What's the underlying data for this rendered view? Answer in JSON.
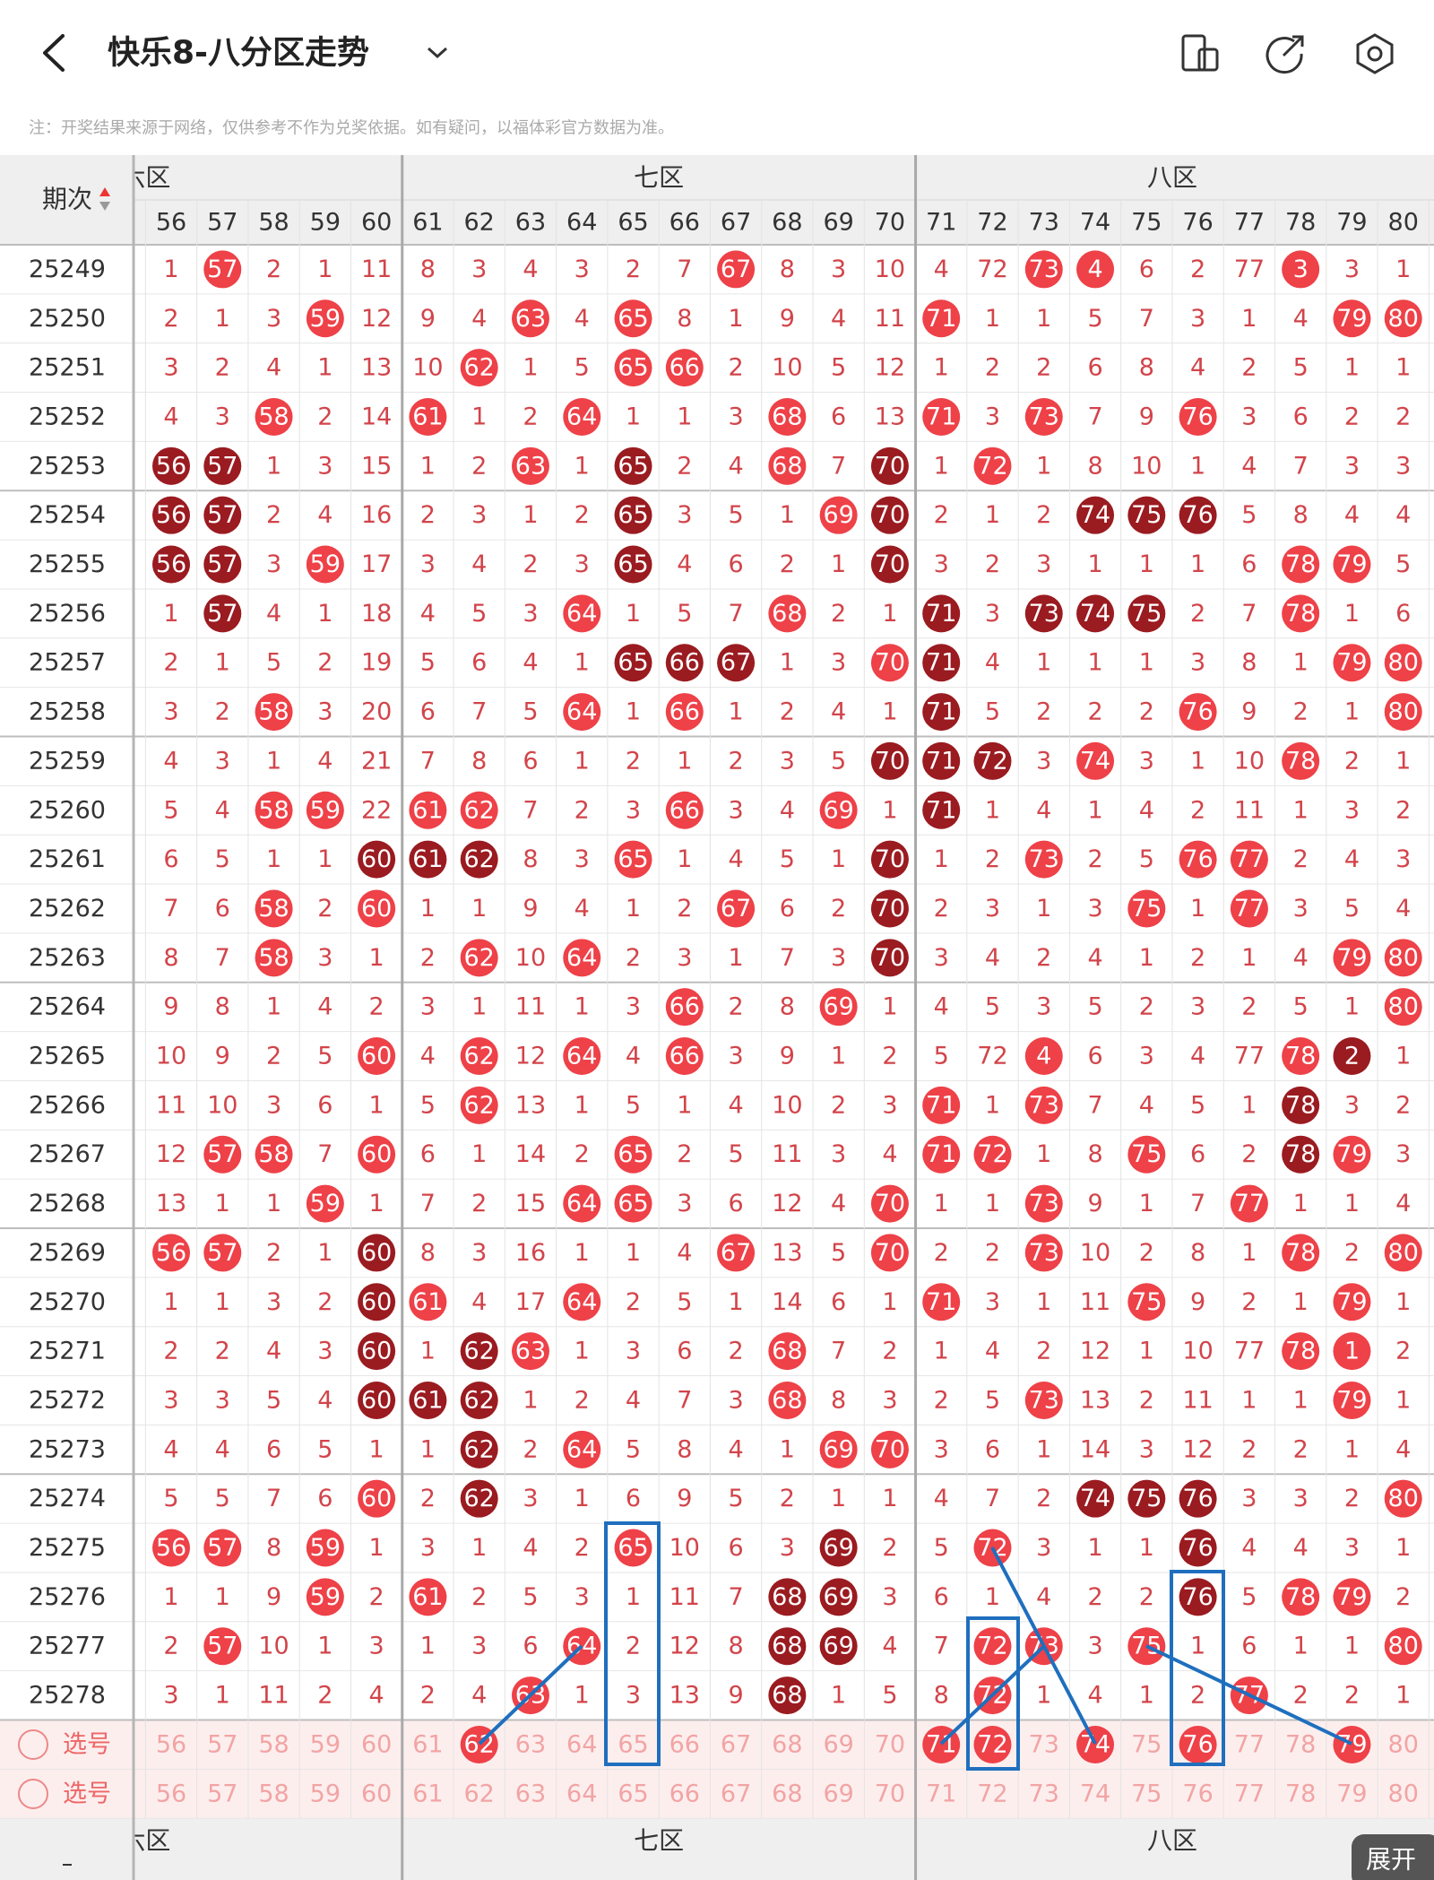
{
  "header": {
    "title": "快乐8-八分区走势"
  },
  "note": "注：开奖结果来源于网络，仅供参考不作为兑奖依据。如有疑问，以福体彩官方数据为准。",
  "table": {
    "period_header": "期次",
    "zones": [
      "六区",
      "七区",
      "八区"
    ],
    "columns": [
      56,
      57,
      58,
      59,
      60,
      61,
      62,
      63,
      64,
      65,
      66,
      67,
      68,
      69,
      70,
      71,
      72,
      73,
      74,
      75,
      76,
      77,
      78,
      79,
      80
    ],
    "rows": [
      {
        "period": "25249",
        "cells": [
          1,
          57,
          2,
          1,
          11,
          8,
          3,
          4,
          3,
          2,
          7,
          67,
          8,
          3,
          10,
          4,
          72,
          73,
          4,
          6,
          2,
          77,
          3,
          3,
          1
        ],
        "style": ".r.........r.....rr...r..."
      },
      {
        "period": "25250",
        "cells": [
          2,
          1,
          3,
          59,
          12,
          9,
          4,
          63,
          4,
          65,
          8,
          1,
          9,
          4,
          11,
          71,
          1,
          1,
          5,
          7,
          3,
          1,
          4,
          79,
          80
        ],
        "style": "...r...r.r.....r.......rr"
      },
      {
        "period": "25251",
        "cells": [
          3,
          2,
          4,
          1,
          13,
          10,
          62,
          1,
          5,
          65,
          66,
          2,
          10,
          5,
          12,
          1,
          2,
          2,
          6,
          8,
          4,
          2,
          5,
          1,
          1
        ],
        "style": "......r..rr..............."
      },
      {
        "period": "25252",
        "cells": [
          4,
          3,
          58,
          2,
          14,
          61,
          1,
          2,
          64,
          1,
          1,
          3,
          68,
          6,
          13,
          71,
          3,
          73,
          7,
          9,
          76,
          3,
          6,
          2,
          2
        ],
        "style": "..r..r..r...r..r.r..r...."
      },
      {
        "period": "25253",
        "cells": [
          56,
          57,
          1,
          3,
          15,
          1,
          2,
          63,
          1,
          65,
          2,
          4,
          68,
          7,
          70,
          1,
          72,
          1,
          8,
          10,
          1,
          4,
          7,
          3,
          3
        ],
        "style": "dd.....r.d..r.d.r........"
      },
      {
        "period": "25254",
        "cells": [
          56,
          57,
          2,
          4,
          16,
          2,
          3,
          1,
          2,
          65,
          3,
          5,
          1,
          69,
          70,
          2,
          1,
          2,
          74,
          75,
          76,
          5,
          8,
          4,
          4
        ],
        "style": "dd.......d...rd...ddd...."
      },
      {
        "period": "25255",
        "cells": [
          56,
          57,
          3,
          59,
          17,
          3,
          4,
          2,
          3,
          65,
          4,
          6,
          2,
          1,
          70,
          3,
          2,
          3,
          1,
          1,
          1,
          6,
          78,
          79,
          5
        ],
        "style": "dd.r.....d....d.......rr."
      },
      {
        "period": "25256",
        "cells": [
          1,
          57,
          4,
          1,
          18,
          4,
          5,
          3,
          64,
          1,
          5,
          7,
          68,
          2,
          1,
          71,
          3,
          73,
          74,
          75,
          2,
          7,
          78,
          1,
          6
        ],
        "style": ".d......r...r..d.ddd..r.."
      },
      {
        "period": "25257",
        "cells": [
          2,
          1,
          5,
          2,
          19,
          5,
          6,
          4,
          1,
          65,
          66,
          67,
          1,
          3,
          70,
          71,
          4,
          1,
          1,
          1,
          3,
          8,
          1,
          79,
          80
        ],
        "style": ".........ddd..rd.......rr"
      },
      {
        "period": "25258",
        "cells": [
          3,
          2,
          58,
          3,
          20,
          6,
          7,
          5,
          64,
          1,
          66,
          1,
          2,
          4,
          1,
          71,
          5,
          2,
          2,
          2,
          76,
          9,
          2,
          1,
          80
        ],
        "style": "..r.....r.r....d....r...r"
      },
      {
        "period": "25259",
        "cells": [
          4,
          3,
          1,
          4,
          21,
          7,
          8,
          6,
          1,
          2,
          1,
          2,
          3,
          5,
          70,
          71,
          72,
          3,
          74,
          3,
          1,
          10,
          78,
          2,
          1
        ],
        "style": "..............ddd.r...r.."
      },
      {
        "period": "25260",
        "cells": [
          5,
          4,
          58,
          59,
          22,
          61,
          62,
          7,
          2,
          3,
          66,
          3,
          4,
          69,
          1,
          71,
          1,
          4,
          1,
          4,
          2,
          11,
          1,
          3,
          2
        ],
        "style": "..rr.rr...r..r.d........."
      },
      {
        "period": "25261",
        "cells": [
          6,
          5,
          1,
          1,
          60,
          61,
          62,
          8,
          3,
          65,
          1,
          4,
          5,
          1,
          70,
          1,
          2,
          73,
          2,
          5,
          76,
          77,
          2,
          4,
          3
        ],
        "style": "....ddd..r....d..r..rr..."
      },
      {
        "period": "25262",
        "cells": [
          7,
          6,
          58,
          2,
          60,
          1,
          1,
          9,
          4,
          1,
          2,
          67,
          6,
          2,
          70,
          2,
          3,
          1,
          3,
          75,
          1,
          77,
          3,
          5,
          4
        ],
        "style": "..r.r......r..d....r.r..."
      },
      {
        "period": "25263",
        "cells": [
          8,
          7,
          58,
          3,
          1,
          2,
          62,
          10,
          64,
          2,
          3,
          1,
          7,
          3,
          70,
          3,
          4,
          2,
          4,
          1,
          2,
          1,
          4,
          79,
          80
        ],
        "style": "..r...r.r.....d........rr"
      },
      {
        "period": "25264",
        "cells": [
          9,
          8,
          1,
          4,
          2,
          3,
          1,
          11,
          1,
          3,
          66,
          2,
          8,
          69,
          1,
          4,
          5,
          3,
          5,
          2,
          3,
          2,
          5,
          1,
          80
        ],
        "style": "..........r..r..........r"
      },
      {
        "period": "25265",
        "cells": [
          10,
          9,
          2,
          5,
          60,
          4,
          62,
          12,
          64,
          4,
          66,
          3,
          9,
          1,
          2,
          5,
          72,
          4,
          6,
          3,
          4,
          77,
          78,
          2,
          1
        ],
        "style": "....r.r.r.r......r....rd.."
      },
      {
        "period": "25266",
        "cells": [
          11,
          10,
          3,
          6,
          1,
          5,
          62,
          13,
          1,
          5,
          1,
          4,
          10,
          2,
          3,
          71,
          1,
          73,
          7,
          4,
          5,
          1,
          78,
          3,
          2
        ],
        "style": "......r........r.r....d.."
      },
      {
        "period": "25267",
        "cells": [
          12,
          57,
          58,
          7,
          60,
          6,
          1,
          14,
          2,
          65,
          2,
          5,
          11,
          3,
          4,
          71,
          72,
          1,
          8,
          75,
          6,
          2,
          78,
          79,
          3
        ],
        "style": ".rr.r....r.....rr..r..dr."
      },
      {
        "period": "25268",
        "cells": [
          13,
          1,
          1,
          59,
          1,
          7,
          2,
          15,
          64,
          65,
          3,
          6,
          12,
          4,
          70,
          1,
          1,
          73,
          9,
          1,
          7,
          77,
          1,
          1,
          4
        ],
        "style": "...r....rr....r..r...r..."
      },
      {
        "period": "25269",
        "cells": [
          56,
          57,
          2,
          1,
          60,
          8,
          3,
          16,
          1,
          1,
          4,
          67,
          13,
          5,
          70,
          2,
          2,
          73,
          10,
          2,
          8,
          1,
          78,
          2,
          80
        ],
        "style": "rr..d......r..r..r....r.r"
      },
      {
        "period": "25270",
        "cells": [
          1,
          1,
          3,
          2,
          60,
          61,
          4,
          17,
          64,
          2,
          5,
          1,
          14,
          6,
          1,
          71,
          3,
          1,
          11,
          75,
          9,
          2,
          1,
          79,
          1
        ],
        "style": "....dr..r......r...r...r."
      },
      {
        "period": "25271",
        "cells": [
          2,
          2,
          4,
          3,
          60,
          1,
          62,
          63,
          1,
          3,
          6,
          2,
          68,
          7,
          2,
          1,
          4,
          2,
          12,
          1,
          10,
          77,
          78,
          1,
          2
        ],
        "style": "....d.dr....r.........rr.."
      },
      {
        "period": "25272",
        "cells": [
          3,
          3,
          5,
          4,
          60,
          61,
          62,
          1,
          2,
          4,
          7,
          3,
          68,
          8,
          3,
          2,
          5,
          73,
          13,
          2,
          11,
          1,
          1,
          79,
          1
        ],
        "style": "....ddd.....r....r.....r."
      },
      {
        "period": "25273",
        "cells": [
          4,
          4,
          6,
          5,
          1,
          1,
          62,
          2,
          64,
          5,
          8,
          4,
          1,
          69,
          70,
          3,
          6,
          1,
          14,
          3,
          12,
          2,
          2,
          1,
          4
        ],
        "style": "......d.r....rr.........."
      },
      {
        "period": "25274",
        "cells": [
          5,
          5,
          7,
          6,
          60,
          2,
          62,
          3,
          1,
          6,
          9,
          5,
          2,
          1,
          1,
          4,
          7,
          2,
          74,
          75,
          76,
          3,
          3,
          2,
          80
        ],
        "style": "....r.d...........ddd...r"
      },
      {
        "period": "25275",
        "cells": [
          56,
          57,
          8,
          59,
          1,
          3,
          1,
          4,
          2,
          65,
          10,
          6,
          3,
          69,
          2,
          5,
          72,
          3,
          1,
          1,
          76,
          4,
          4,
          3,
          1
        ],
        "style": "rr.r.....r...d..r...d...."
      },
      {
        "period": "25276",
        "cells": [
          1,
          1,
          9,
          59,
          2,
          61,
          2,
          5,
          3,
          1,
          11,
          7,
          68,
          69,
          3,
          6,
          1,
          4,
          2,
          2,
          76,
          5,
          78,
          79,
          2
        ],
        "style": "...r.r......dd......d.rr."
      },
      {
        "period": "25277",
        "cells": [
          2,
          57,
          10,
          1,
          3,
          1,
          3,
          6,
          64,
          2,
          12,
          8,
          68,
          69,
          4,
          7,
          72,
          73,
          3,
          75,
          1,
          6,
          1,
          1,
          80
        ],
        "style": ".r......r...dd..rr.r....r"
      },
      {
        "period": "25278",
        "cells": [
          3,
          1,
          11,
          2,
          4,
          2,
          4,
          63,
          1,
          3,
          13,
          9,
          68,
          1,
          5,
          8,
          72,
          1,
          4,
          1,
          2,
          77,
          2,
          2,
          1
        ],
        "style": ".......r....d...r....r..."
      }
    ],
    "select_rows": [
      {
        "label": "选号",
        "selected": [
          62,
          71,
          72,
          74,
          76,
          79
        ]
      },
      {
        "label": "选号",
        "selected": []
      }
    ]
  },
  "expand": "展开"
}
